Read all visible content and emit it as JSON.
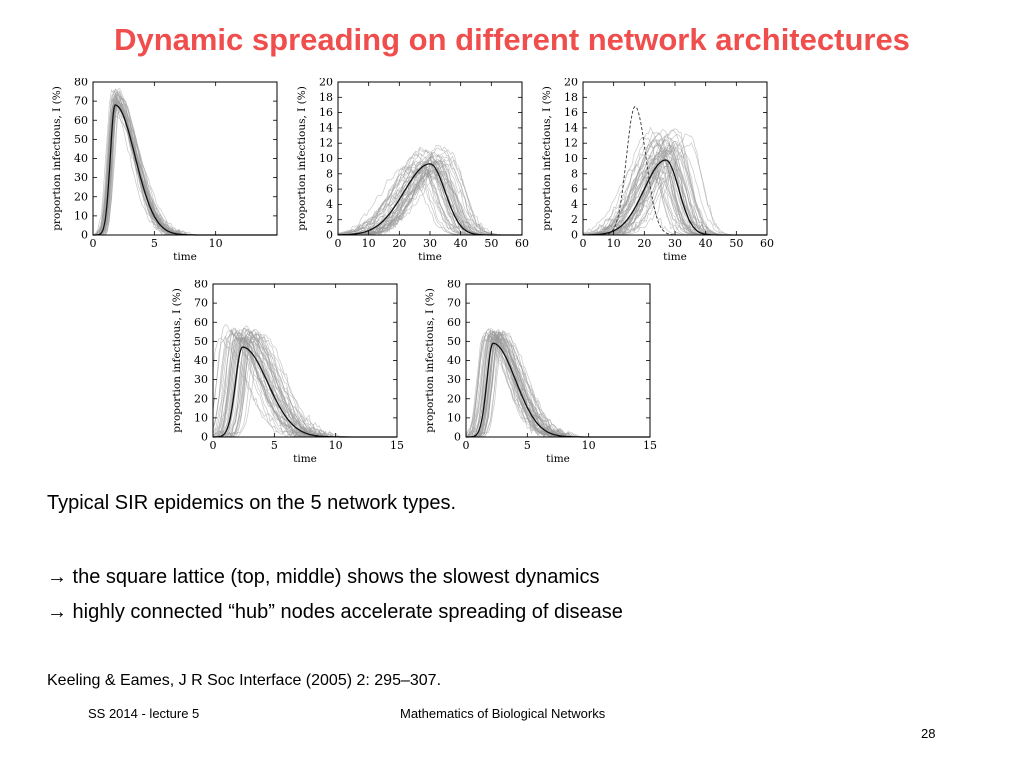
{
  "slide": {
    "title": "Dynamic spreading on different network architectures",
    "title_color": "#f04d4d",
    "text_lines": [
      "Typical SIR epidemics on the 5 network types.",
      "→ the square lattice (top, middle) shows the slowest dynamics",
      "→ highly connected “hub” nodes accelerate spreading of disease"
    ],
    "reference": "Keeling & Eames, J R Soc Interface (2005) 2: 295–307.",
    "footer_left": "SS 2014 - lecture 5",
    "footer_center": "Mathematics of Biological Networks",
    "page_number": "28"
  },
  "chart_data": [
    {
      "type": "line",
      "xlabel": "time",
      "ylabel": "proportion infectious, I (%)",
      "xlim": [
        0,
        15
      ],
      "ylim": [
        0,
        80
      ],
      "xticks": [
        0,
        5,
        10,
        15
      ],
      "yticks": [
        0,
        10,
        20,
        30,
        40,
        50,
        60,
        70,
        80
      ],
      "xtick_labels": [
        "0",
        "5",
        "10",
        ""
      ],
      "mean_curve": {
        "peak_time": 1.8,
        "peak_value": 68,
        "rise_width": 0.55,
        "decay_width": 2.3
      },
      "spread": {
        "peak_time_sd": 0.15,
        "peak_value_range": [
          62,
          76
        ],
        "runs": 40
      }
    },
    {
      "type": "line",
      "xlabel": "time",
      "ylabel": "proportion infectious, I (%)",
      "xlim": [
        0,
        60
      ],
      "ylim": [
        0,
        20
      ],
      "xticks": [
        0,
        10,
        20,
        30,
        40,
        50,
        60
      ],
      "yticks": [
        0,
        2,
        4,
        6,
        8,
        10,
        12,
        14,
        16,
        18,
        20
      ],
      "xtick_labels": [
        "0",
        "10",
        "20",
        "30",
        "40",
        "50",
        "60"
      ],
      "mean_curve": {
        "peak_time": 30,
        "peak_value": 9.3,
        "rise_width": 12,
        "decay_width": 7
      },
      "spread": {
        "peak_time_sd": 3.5,
        "peak_value_range": [
          7.5,
          11.5
        ],
        "runs": 45
      }
    },
    {
      "type": "line",
      "xlabel": "time",
      "ylabel": "proportion infectious, I (%)",
      "xlim": [
        0,
        60
      ],
      "ylim": [
        0,
        20
      ],
      "xticks": [
        0,
        10,
        20,
        30,
        40,
        50,
        60
      ],
      "yticks": [
        0,
        2,
        4,
        6,
        8,
        10,
        12,
        14,
        16,
        18,
        20
      ],
      "xtick_labels": [
        "0",
        "10",
        "20",
        "30",
        "40",
        "50",
        "60"
      ],
      "mean_curve": {
        "peak_time": 27,
        "peak_value": 9.8,
        "rise_width": 10,
        "decay_width": 6
      },
      "dashed_curve": {
        "peak_time": 17,
        "peak_value": 16.8,
        "rise_width": 4,
        "decay_width": 5
      },
      "spread": {
        "peak_time_sd": 4,
        "peak_value_range": [
          7,
          14
        ],
        "runs": 50
      }
    },
    {
      "type": "line",
      "xlabel": "time",
      "ylabel": "proportion infectious, I (%)",
      "xlim": [
        0,
        15
      ],
      "ylim": [
        0,
        80
      ],
      "xticks": [
        0,
        5,
        10,
        15
      ],
      "yticks": [
        0,
        10,
        20,
        30,
        40,
        50,
        60,
        70,
        80
      ],
      "xtick_labels": [
        "0",
        "5",
        "10",
        "15"
      ],
      "mean_curve": {
        "peak_time": 2.4,
        "peak_value": 47,
        "rise_width": 0.8,
        "decay_width": 2.9
      },
      "spread": {
        "peak_time_sd": 0.8,
        "peak_value_range": [
          50,
          57
        ],
        "runs": 45
      }
    },
    {
      "type": "line",
      "xlabel": "time",
      "ylabel": "proportion infectious, I (%)",
      "xlim": [
        0,
        15
      ],
      "ylim": [
        0,
        80
      ],
      "xticks": [
        0,
        5,
        10,
        15
      ],
      "yticks": [
        0,
        10,
        20,
        30,
        40,
        50,
        60,
        70,
        80
      ],
      "xtick_labels": [
        "0",
        "5",
        "10",
        "15"
      ],
      "mean_curve": {
        "peak_time": 2.2,
        "peak_value": 49,
        "rise_width": 0.7,
        "decay_width": 2.6
      },
      "spread": {
        "peak_time_sd": 0.45,
        "peak_value_range": [
          50,
          56
        ],
        "runs": 45
      }
    }
  ]
}
